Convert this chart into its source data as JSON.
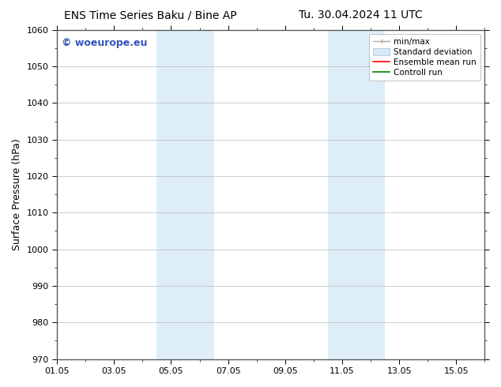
{
  "title_left": "ENS Time Series Baku / Bine AP",
  "title_right": "Tu. 30.04.2024 11 UTC",
  "ylabel": "Surface Pressure (hPa)",
  "ylim": [
    970,
    1060
  ],
  "yticks": [
    970,
    980,
    990,
    1000,
    1010,
    1020,
    1030,
    1040,
    1050,
    1060
  ],
  "xlim": [
    0,
    15
  ],
  "xtick_labels": [
    "01.05",
    "03.05",
    "05.05",
    "07.05",
    "09.05",
    "11.05",
    "13.05",
    "15.05"
  ],
  "xtick_positions": [
    0,
    2,
    4,
    6,
    8,
    10,
    12,
    14
  ],
  "shaded_regions": [
    {
      "x_start": 3.5,
      "x_end": 4.5,
      "color": "#ddeef8"
    },
    {
      "x_start": 4.5,
      "x_end": 5.5,
      "color": "#ddeef8"
    },
    {
      "x_start": 9.5,
      "x_end": 10.5,
      "color": "#ddeef8"
    },
    {
      "x_start": 10.5,
      "x_end": 11.5,
      "color": "#ddeef8"
    }
  ],
  "watermark_text": "© woeurope.eu",
  "watermark_color": "#3355bb",
  "bg_color": "#ffffff",
  "plot_bg_color": "#ffffff",
  "grid_color": "#bbbbbb",
  "border_color": "#555555",
  "title_fontsize": 10,
  "ylabel_fontsize": 9,
  "tick_fontsize": 8,
  "watermark_fontsize": 9,
  "legend_fontsize": 7.5
}
